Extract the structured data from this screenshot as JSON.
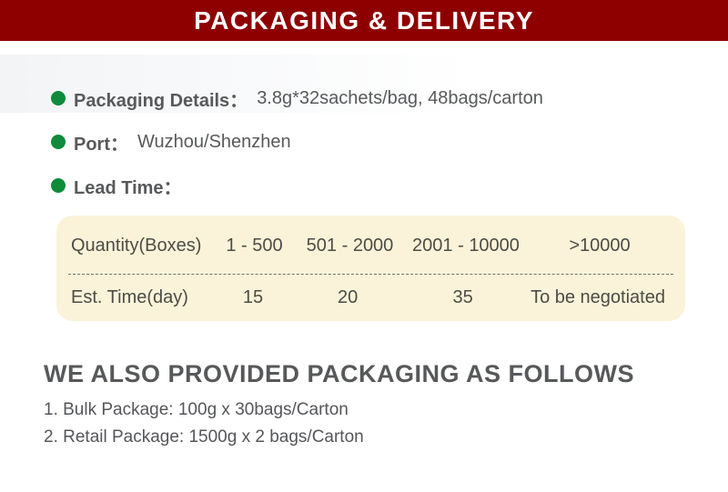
{
  "banner": {
    "title": "PACKAGING & DELIVERY"
  },
  "colors": {
    "banner_red": "#8e0000",
    "bullet_green": "#0e8c3a",
    "table_bg": "#faf3da",
    "text_gray": "#58595b",
    "table_text": "#4d4c45"
  },
  "bullets": [
    {
      "label": "Packaging Details：",
      "value": "3.8g*32sachets/bag, 48bags/carton"
    },
    {
      "label": "Port：",
      "value": "Wuzhou/Shenzhen"
    },
    {
      "label": "Lead Time：",
      "value": ""
    }
  ],
  "lead_time_table": {
    "header_row": [
      "Quantity(Boxes)",
      "1 - 500",
      "501 - 2000",
      "2001 - 10000",
      ">10000"
    ],
    "value_row": [
      "Est. Time(day)",
      "15",
      "20",
      "35",
      "To be negotiated"
    ]
  },
  "packaging_section": {
    "heading": "WE ALSO PROVIDED PACKAGING AS FOLLOWS",
    "items": [
      "1. Bulk Package: 100g x 30bags/Carton",
      "2. Retail Package: 1500g x 2 bags/Carton"
    ]
  }
}
